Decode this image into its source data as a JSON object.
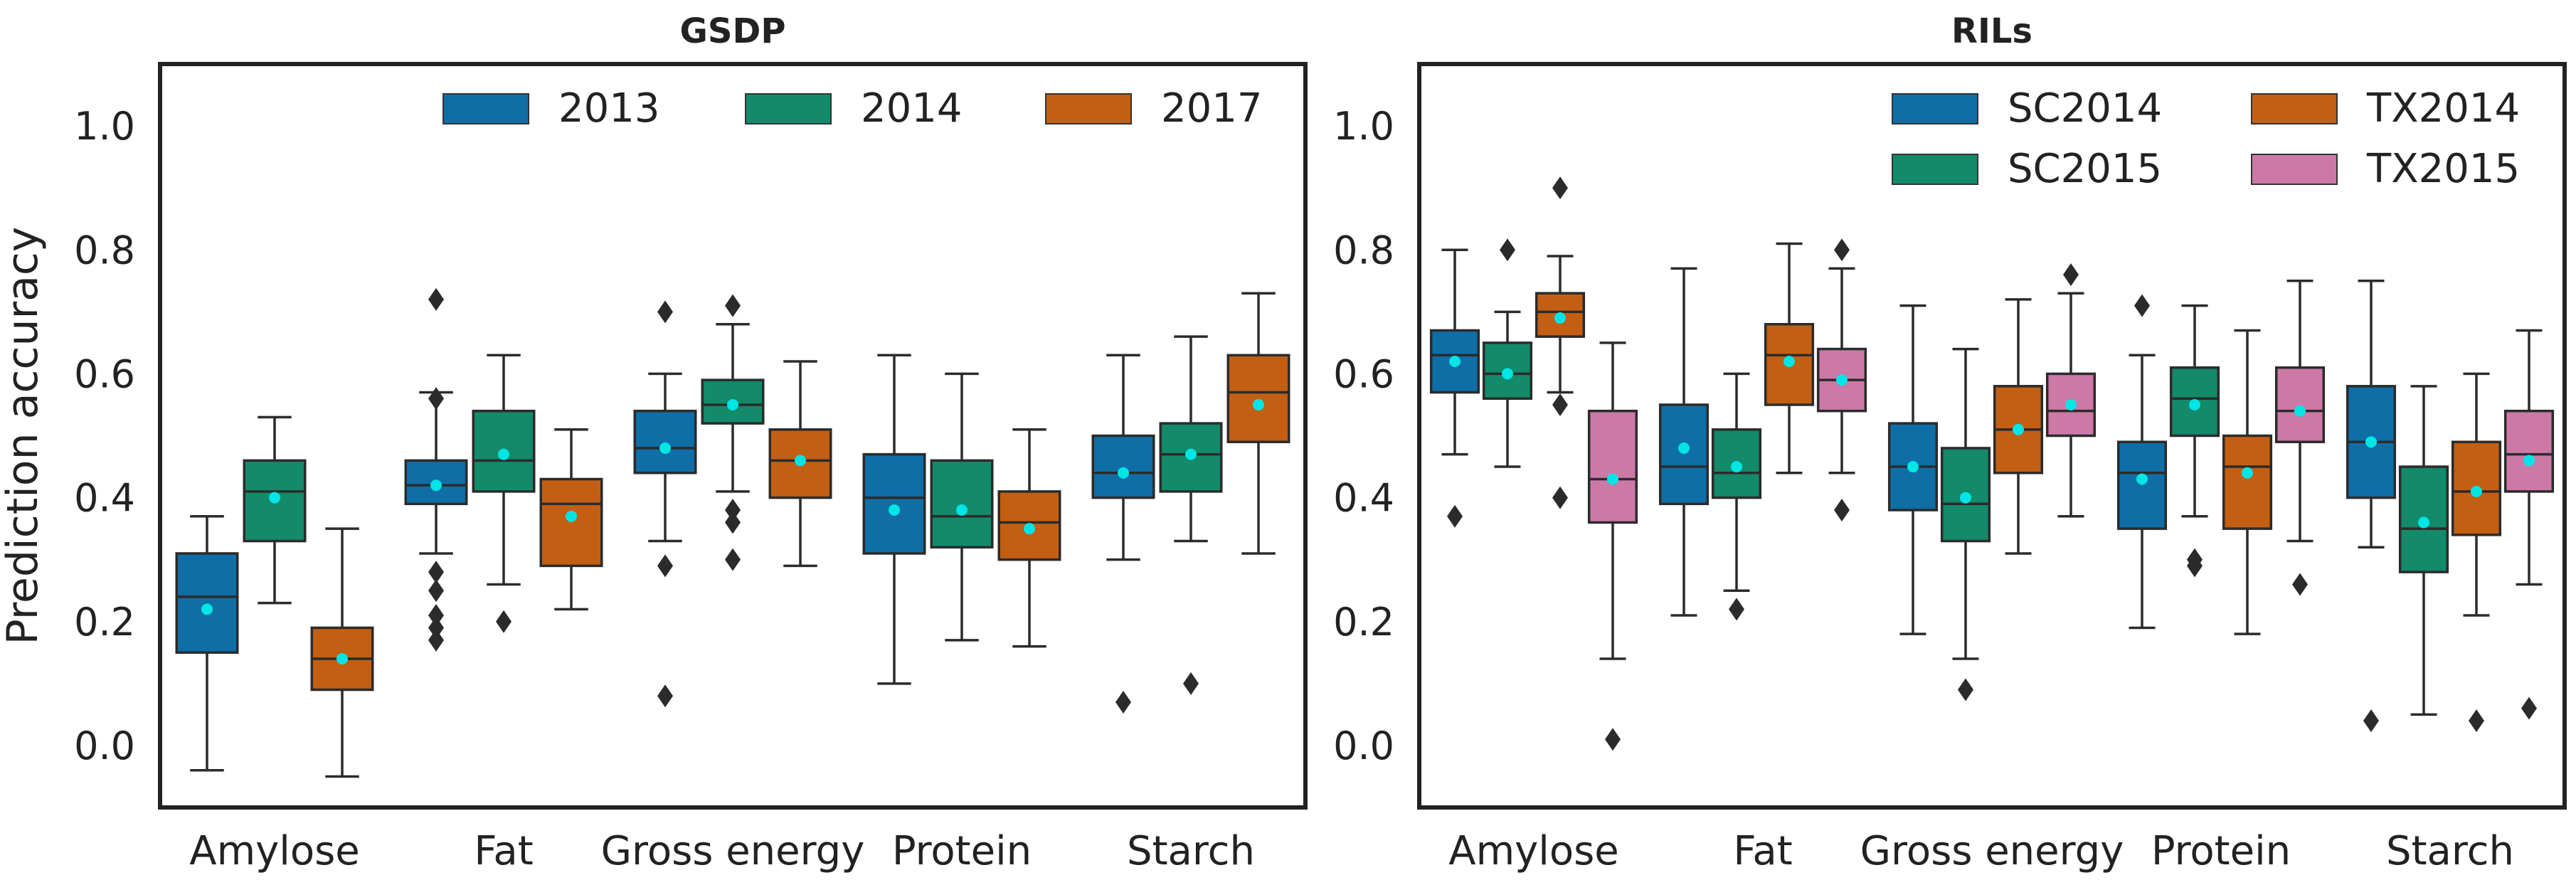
{
  "chart_data": [
    {
      "type": "box",
      "title": "GSDP",
      "ylabel": "Prediction accuracy",
      "xlabel": "",
      "ylim": [
        -0.1,
        1.1
      ],
      "yticks": [
        "0.0",
        "0.2",
        "0.4",
        "0.6",
        "0.8",
        "1.0"
      ],
      "grid": false,
      "legend_position": "top-right",
      "legend_columns": 3,
      "categories": [
        "Amylose",
        "Fat",
        "Gross energy",
        "Protein",
        "Starch"
      ],
      "series": [
        {
          "name": "2013",
          "color": "#0f6ea6",
          "boxes": [
            {
              "whisker_low": -0.04,
              "q1": 0.15,
              "median": 0.24,
              "q3": 0.31,
              "whisker_high": 0.37,
              "mean": 0.22,
              "fliers": []
            },
            {
              "whisker_low": 0.31,
              "q1": 0.39,
              "median": 0.42,
              "q3": 0.46,
              "whisker_high": 0.57,
              "mean": 0.42,
              "fliers": [
                0.72,
                0.56,
                0.28,
                0.25,
                0.21,
                0.19,
                0.17
              ]
            },
            {
              "whisker_low": 0.33,
              "q1": 0.44,
              "median": 0.48,
              "q3": 0.54,
              "whisker_high": 0.6,
              "mean": 0.48,
              "fliers": [
                0.7,
                0.29,
                0.08
              ]
            },
            {
              "whisker_low": 0.1,
              "q1": 0.31,
              "median": 0.4,
              "q3": 0.47,
              "whisker_high": 0.63,
              "mean": 0.38,
              "fliers": []
            },
            {
              "whisker_low": 0.3,
              "q1": 0.4,
              "median": 0.44,
              "q3": 0.5,
              "whisker_high": 0.63,
              "mean": 0.44,
              "fliers": [
                0.07
              ]
            }
          ]
        },
        {
          "name": "2014",
          "color": "#138a69",
          "boxes": [
            {
              "whisker_low": 0.23,
              "q1": 0.33,
              "median": 0.41,
              "q3": 0.46,
              "whisker_high": 0.53,
              "mean": 0.4,
              "fliers": []
            },
            {
              "whisker_low": 0.26,
              "q1": 0.41,
              "median": 0.46,
              "q3": 0.54,
              "whisker_high": 0.63,
              "mean": 0.47,
              "fliers": [
                0.2
              ]
            },
            {
              "whisker_low": 0.41,
              "q1": 0.52,
              "median": 0.55,
              "q3": 0.59,
              "whisker_high": 0.68,
              "mean": 0.55,
              "fliers": [
                0.71,
                0.38,
                0.36,
                0.3
              ]
            },
            {
              "whisker_low": 0.17,
              "q1": 0.32,
              "median": 0.37,
              "q3": 0.46,
              "whisker_high": 0.6,
              "mean": 0.38,
              "fliers": []
            },
            {
              "whisker_low": 0.33,
              "q1": 0.41,
              "median": 0.47,
              "q3": 0.52,
              "whisker_high": 0.66,
              "mean": 0.47,
              "fliers": [
                0.1
              ]
            }
          ]
        },
        {
          "name": "2017",
          "color": "#c25f13",
          "boxes": [
            {
              "whisker_low": -0.05,
              "q1": 0.09,
              "median": 0.14,
              "q3": 0.19,
              "whisker_high": 0.35,
              "mean": 0.14,
              "fliers": []
            },
            {
              "whisker_low": 0.22,
              "q1": 0.29,
              "median": 0.39,
              "q3": 0.43,
              "whisker_high": 0.51,
              "mean": 0.37,
              "fliers": []
            },
            {
              "whisker_low": 0.29,
              "q1": 0.4,
              "median": 0.46,
              "q3": 0.51,
              "whisker_high": 0.62,
              "mean": 0.46,
              "fliers": []
            },
            {
              "whisker_low": 0.16,
              "q1": 0.3,
              "median": 0.36,
              "q3": 0.41,
              "whisker_high": 0.51,
              "mean": 0.35,
              "fliers": []
            },
            {
              "whisker_low": 0.31,
              "q1": 0.49,
              "median": 0.57,
              "q3": 0.63,
              "whisker_high": 0.73,
              "mean": 0.55,
              "fliers": []
            }
          ]
        }
      ]
    },
    {
      "type": "box",
      "title": "RILs",
      "ylabel": "",
      "xlabel": "",
      "ylim": [
        -0.1,
        1.1
      ],
      "yticks": [
        "0.0",
        "0.2",
        "0.4",
        "0.6",
        "0.8",
        "1.0"
      ],
      "grid": false,
      "legend_position": "top-right",
      "legend_columns": 2,
      "categories": [
        "Amylose",
        "Fat",
        "Gross energy",
        "Protein",
        "Starch"
      ],
      "series": [
        {
          "name": "SC2014",
          "color": "#0f6ea6",
          "boxes": [
            {
              "whisker_low": 0.47,
              "q1": 0.57,
              "median": 0.63,
              "q3": 0.67,
              "whisker_high": 0.8,
              "mean": 0.62,
              "fliers": [
                0.37
              ]
            },
            {
              "whisker_low": 0.21,
              "q1": 0.39,
              "median": 0.45,
              "q3": 0.55,
              "whisker_high": 0.77,
              "mean": 0.48,
              "fliers": []
            },
            {
              "whisker_low": 0.18,
              "q1": 0.38,
              "median": 0.45,
              "q3": 0.52,
              "whisker_high": 0.71,
              "mean": 0.45,
              "fliers": []
            },
            {
              "whisker_low": 0.19,
              "q1": 0.35,
              "median": 0.44,
              "q3": 0.49,
              "whisker_high": 0.63,
              "mean": 0.43,
              "fliers": [
                0.71
              ]
            },
            {
              "whisker_low": 0.32,
              "q1": 0.4,
              "median": 0.49,
              "q3": 0.58,
              "whisker_high": 0.75,
              "mean": 0.49,
              "fliers": [
                0.04
              ]
            }
          ]
        },
        {
          "name": "SC2015",
          "color": "#138a69",
          "boxes": [
            {
              "whisker_low": 0.45,
              "q1": 0.56,
              "median": 0.6,
              "q3": 0.65,
              "whisker_high": 0.7,
              "mean": 0.6,
              "fliers": [
                0.8
              ]
            },
            {
              "whisker_low": 0.25,
              "q1": 0.4,
              "median": 0.44,
              "q3": 0.51,
              "whisker_high": 0.6,
              "mean": 0.45,
              "fliers": [
                0.22
              ]
            },
            {
              "whisker_low": 0.14,
              "q1": 0.33,
              "median": 0.39,
              "q3": 0.48,
              "whisker_high": 0.64,
              "mean": 0.4,
              "fliers": [
                0.09
              ]
            },
            {
              "whisker_low": 0.37,
              "q1": 0.5,
              "median": 0.56,
              "q3": 0.61,
              "whisker_high": 0.71,
              "mean": 0.55,
              "fliers": [
                0.3,
                0.29
              ]
            },
            {
              "whisker_low": 0.05,
              "q1": 0.28,
              "median": 0.35,
              "q3": 0.45,
              "whisker_high": 0.58,
              "mean": 0.36,
              "fliers": []
            }
          ]
        },
        {
          "name": "TX2014",
          "color": "#c25f13",
          "boxes": [
            {
              "whisker_low": 0.57,
              "q1": 0.66,
              "median": 0.7,
              "q3": 0.73,
              "whisker_high": 0.79,
              "mean": 0.69,
              "fliers": [
                0.9,
                0.55,
                0.4
              ]
            },
            {
              "whisker_low": 0.44,
              "q1": 0.55,
              "median": 0.63,
              "q3": 0.68,
              "whisker_high": 0.81,
              "mean": 0.62,
              "fliers": []
            },
            {
              "whisker_low": 0.31,
              "q1": 0.44,
              "median": 0.51,
              "q3": 0.58,
              "whisker_high": 0.72,
              "mean": 0.51,
              "fliers": []
            },
            {
              "whisker_low": 0.18,
              "q1": 0.35,
              "median": 0.45,
              "q3": 0.5,
              "whisker_high": 0.67,
              "mean": 0.44,
              "fliers": []
            },
            {
              "whisker_low": 0.21,
              "q1": 0.34,
              "median": 0.41,
              "q3": 0.49,
              "whisker_high": 0.6,
              "mean": 0.41,
              "fliers": [
                0.04
              ]
            }
          ]
        },
        {
          "name": "TX2015",
          "color": "#cc79a7",
          "boxes": [
            {
              "whisker_low": 0.14,
              "q1": 0.36,
              "median": 0.43,
              "q3": 0.54,
              "whisker_high": 0.65,
              "mean": 0.43,
              "fliers": [
                0.01
              ]
            },
            {
              "whisker_low": 0.44,
              "q1": 0.54,
              "median": 0.59,
              "q3": 0.64,
              "whisker_high": 0.77,
              "mean": 0.59,
              "fliers": [
                0.8,
                0.38
              ]
            },
            {
              "whisker_low": 0.37,
              "q1": 0.5,
              "median": 0.54,
              "q3": 0.6,
              "whisker_high": 0.73,
              "mean": 0.55,
              "fliers": [
                0.76
              ]
            },
            {
              "whisker_low": 0.33,
              "q1": 0.49,
              "median": 0.54,
              "q3": 0.61,
              "whisker_high": 0.75,
              "mean": 0.54,
              "fliers": [
                0.26
              ]
            },
            {
              "whisker_low": 0.26,
              "q1": 0.41,
              "median": 0.47,
              "q3": 0.54,
              "whisker_high": 0.67,
              "mean": 0.46,
              "fliers": [
                0.06
              ]
            }
          ]
        }
      ]
    }
  ],
  "style": {
    "mean_marker_color": "#00e5e5",
    "line_color": "#2b2b2b",
    "frame_color": "#222222"
  }
}
